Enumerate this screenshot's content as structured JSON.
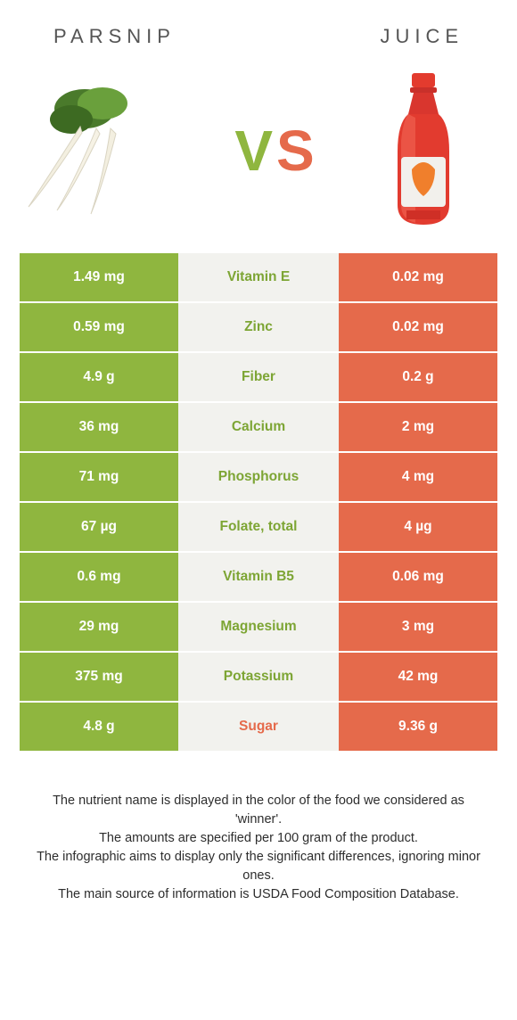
{
  "header": {
    "left_title": "PARSNIP",
    "right_title": "JUICE"
  },
  "vs": {
    "v": "V",
    "s": "S"
  },
  "colors": {
    "green": "#8fb63f",
    "orange": "#e56a4b",
    "mid_bg": "#f2f2ee",
    "green_text": "#7da534",
    "orange_text": "#e56a4b"
  },
  "table": {
    "left_bg": "#8fb63f",
    "right_bg": "#e56a4b",
    "mid_bg": "#f2f2ee",
    "rows": [
      {
        "left": "1.49 mg",
        "label": "Vitamin E",
        "right": "0.02 mg",
        "winner": "left"
      },
      {
        "left": "0.59 mg",
        "label": "Zinc",
        "right": "0.02 mg",
        "winner": "left"
      },
      {
        "left": "4.9 g",
        "label": "Fiber",
        "right": "0.2 g",
        "winner": "left"
      },
      {
        "left": "36 mg",
        "label": "Calcium",
        "right": "2 mg",
        "winner": "left"
      },
      {
        "left": "71 mg",
        "label": "Phosphorus",
        "right": "4 mg",
        "winner": "left"
      },
      {
        "left": "67 µg",
        "label": "Folate, total",
        "right": "4 µg",
        "winner": "left"
      },
      {
        "left": "0.6 mg",
        "label": "Vitamin B5",
        "right": "0.06 mg",
        "winner": "left"
      },
      {
        "left": "29 mg",
        "label": "Magnesium",
        "right": "3 mg",
        "winner": "left"
      },
      {
        "left": "375 mg",
        "label": "Potassium",
        "right": "42 mg",
        "winner": "left"
      },
      {
        "left": "4.8 g",
        "label": "Sugar",
        "right": "9.36 g",
        "winner": "right"
      }
    ]
  },
  "footnote": {
    "l1": "The nutrient name is displayed in the color of the food we considered as 'winner'.",
    "l2": "The amounts are specified per 100 gram of the product.",
    "l3": "The infographic aims to display only the significant differences, ignoring minor ones.",
    "l4": "The main source of information is USDA Food Composition Database."
  }
}
